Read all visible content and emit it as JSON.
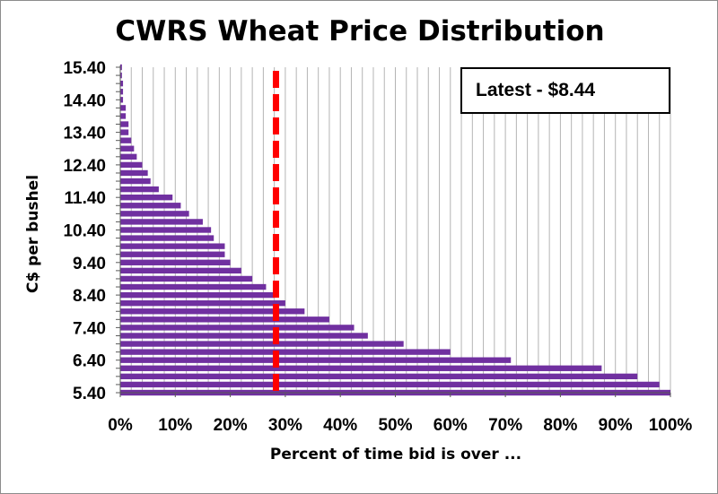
{
  "chart_data": {
    "type": "bar",
    "orientation": "horizontal",
    "title": "CWRS Wheat Price Distribution",
    "xlabel": "Percent of time bid is over ...",
    "ylabel": "C$ per bushel",
    "annotation": "Latest - $8.44",
    "xlim": [
      0,
      100
    ],
    "x_ticks": [
      "0%",
      "10%",
      "20%",
      "30%",
      "40%",
      "50%",
      "60%",
      "70%",
      "80%",
      "90%",
      "100%"
    ],
    "y_tick_labels": [
      "5.40",
      "6.40",
      "7.40",
      "8.40",
      "9.40",
      "10.40",
      "11.40",
      "12.40",
      "13.40",
      "14.40",
      "15.40"
    ],
    "y_range": [
      5.4,
      15.4
    ],
    "y_step": 0.25,
    "grid": "vertical lines every 2%",
    "bar_color": "#7030a0",
    "reference_line": {
      "value": 28.3,
      "color": "#ff0000",
      "style": "dashed"
    },
    "series": [
      {
        "values": [
          100,
          98,
          94,
          87.5,
          71,
          60,
          51.5,
          45,
          42.5,
          38,
          33.5,
          30,
          28,
          26.5,
          24,
          22,
          20,
          19,
          19,
          17,
          16.5,
          15,
          12.5,
          11,
          9.5,
          7,
          5.5,
          5,
          4,
          3,
          2.5,
          2,
          1.5,
          1.5,
          1,
          1,
          0.5,
          0.5,
          0.5,
          0.3,
          0.3
        ]
      }
    ]
  }
}
